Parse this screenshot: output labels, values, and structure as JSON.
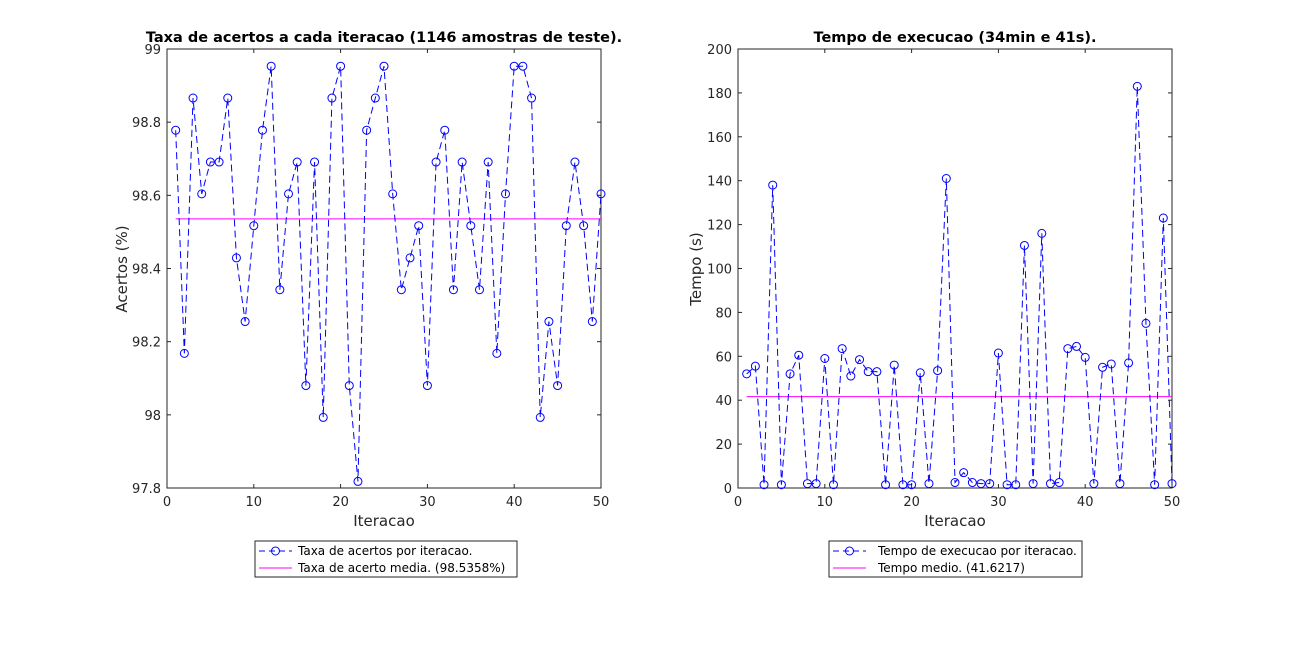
{
  "colors": {
    "series": "#0000ff",
    "mean": "#ff00ff",
    "axis": "#262626",
    "background": "#ffffff"
  },
  "chart_data": [
    {
      "type": "line",
      "title": "Taxa de acertos a cada iteracao (1146 amostras de teste).",
      "xlabel": "Iteracao",
      "ylabel": "Acertos (%)",
      "xlim": [
        0,
        50
      ],
      "ylim": [
        97.8,
        99
      ],
      "xticks": [
        "0",
        "10",
        "20",
        "30",
        "40",
        "50"
      ],
      "yticks": [
        "97.8",
        "98",
        "98.2",
        "98.4",
        "98.6",
        "98.8",
        "99"
      ],
      "grid": false,
      "legend_position": "below",
      "x": [
        1,
        2,
        3,
        4,
        5,
        6,
        7,
        8,
        9,
        10,
        11,
        12,
        13,
        14,
        15,
        16,
        17,
        18,
        19,
        20,
        21,
        22,
        23,
        24,
        25,
        26,
        27,
        28,
        29,
        30,
        31,
        32,
        33,
        34,
        35,
        36,
        37,
        38,
        39,
        40,
        41,
        42,
        43,
        44,
        45,
        46,
        47,
        48,
        49,
        50
      ],
      "series": [
        {
          "name": "Taxa de acertos por iteracao.",
          "style": "dashed-circle",
          "values": [
            98.778,
            98.168,
            98.866,
            98.604,
            98.691,
            98.691,
            98.866,
            98.429,
            98.255,
            98.517,
            98.778,
            98.953,
            98.342,
            98.604,
            98.691,
            98.08,
            98.691,
            97.993,
            98.866,
            98.953,
            98.08,
            97.818,
            98.778,
            98.866,
            98.953,
            98.604,
            98.342,
            98.429,
            98.517,
            98.08,
            98.691,
            98.778,
            98.342,
            98.691,
            98.517,
            98.342,
            98.691,
            98.168,
            98.604,
            98.953,
            98.953,
            98.866,
            97.993,
            98.255,
            98.08,
            98.517,
            98.691,
            98.517,
            98.255,
            98.604
          ]
        },
        {
          "name": "Taxa de acerto media. (98.5358%)",
          "style": "solid",
          "constant": 98.5358,
          "x_range": [
            1,
            50
          ]
        }
      ]
    },
    {
      "type": "line",
      "title": "Tempo de execucao (34min e 41s).",
      "xlabel": "Iteracao",
      "ylabel": "Tempo (s)",
      "xlim": [
        0,
        50
      ],
      "ylim": [
        0,
        200
      ],
      "xticks": [
        "0",
        "10",
        "20",
        "30",
        "40",
        "50"
      ],
      "yticks": [
        "0",
        "20",
        "40",
        "60",
        "80",
        "100",
        "120",
        "140",
        "160",
        "180",
        "200"
      ],
      "grid": false,
      "legend_position": "below",
      "x": [
        1,
        2,
        3,
        4,
        5,
        6,
        7,
        8,
        9,
        10,
        11,
        12,
        13,
        14,
        15,
        16,
        17,
        18,
        19,
        20,
        21,
        22,
        23,
        24,
        25,
        26,
        27,
        28,
        29,
        30,
        31,
        32,
        33,
        34,
        35,
        36,
        37,
        38,
        39,
        40,
        41,
        42,
        43,
        44,
        45,
        46,
        47,
        48,
        49,
        50
      ],
      "series": [
        {
          "name": "Tempo de execucao por iteracao.",
          "style": "dashed-circle",
          "values": [
            52,
            55.5,
            1.5,
            138,
            1.5,
            52,
            60.5,
            2,
            2,
            59,
            1.5,
            63.5,
            51,
            58.5,
            53,
            53,
            1.5,
            56,
            1.5,
            1.5,
            52.5,
            2,
            53.5,
            141,
            2.5,
            7,
            2.5,
            2,
            2,
            61.5,
            1.5,
            1.5,
            110.5,
            2,
            116,
            2,
            2.5,
            63.5,
            64.5,
            59.5,
            2,
            55,
            56.5,
            2,
            57,
            183,
            75,
            1.5,
            123,
            2
          ]
        },
        {
          "name": "Tempo medio. (41.6217)",
          "style": "solid",
          "constant": 41.6217,
          "x_range": [
            1,
            50
          ]
        }
      ]
    }
  ]
}
